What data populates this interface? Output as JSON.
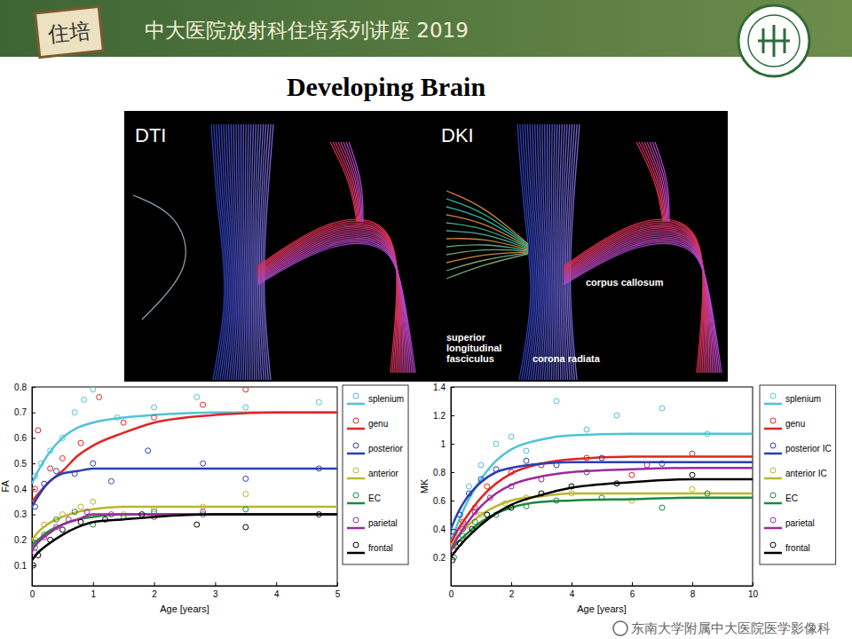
{
  "slide": {
    "header": "中大医院放射科住培系列讲座 2019",
    "badge": "住培",
    "title": "Developing Brain",
    "watermark": "东南大学附属中大医院医学影像科",
    "image": {
      "left_label": "DTI",
      "right_label": "DKI",
      "annotations": [
        "corpus callosum",
        "superior longitudinal fasciculus",
        "corona radiata"
      ]
    }
  },
  "chart_data": [
    {
      "type": "scatter",
      "x_label": "Age [years]",
      "y_label": "FA",
      "xlim": [
        0,
        5
      ],
      "xticks": [
        0,
        1,
        2,
        3,
        4,
        5
      ],
      "ylim": [
        0.02,
        0.8
      ],
      "yticks": [
        0.1,
        0.2,
        0.3,
        0.4,
        0.5,
        0.6,
        0.7,
        0.8
      ],
      "grid": false,
      "legend": "right",
      "series": [
        {
          "name": "splenium",
          "color": "#4ec3d6",
          "marker": "circle",
          "line_style": "solid",
          "x": [
            0.05,
            0.15,
            0.3,
            0.5,
            0.7,
            0.85,
            1.0,
            1.4,
            2.0,
            2.7,
            3.5,
            4.7
          ],
          "values": [
            0.45,
            0.5,
            0.55,
            0.6,
            0.7,
            0.75,
            0.79,
            0.68,
            0.72,
            0.76,
            0.72,
            0.74
          ],
          "fit_x": [
            0,
            0.1,
            0.25,
            0.5,
            0.75,
            1,
            1.5,
            2,
            3,
            4,
            5
          ],
          "fit_values": [
            0.42,
            0.47,
            0.53,
            0.6,
            0.64,
            0.66,
            0.68,
            0.69,
            0.7,
            0.7,
            0.7
          ]
        },
        {
          "name": "genu",
          "color": "#e02424",
          "marker": "circle",
          "line_style": "solid",
          "x": [
            0.05,
            0.1,
            0.3,
            0.5,
            0.8,
            1.1,
            1.5,
            2.0,
            2.8,
            3.5
          ],
          "values": [
            0.4,
            0.63,
            0.48,
            0.52,
            0.58,
            0.76,
            0.66,
            0.68,
            0.73,
            0.79
          ],
          "fit_x": [
            0,
            0.1,
            0.25,
            0.5,
            0.75,
            1,
            1.5,
            2,
            3,
            4,
            5
          ],
          "fit_values": [
            0.35,
            0.38,
            0.42,
            0.47,
            0.53,
            0.57,
            0.62,
            0.66,
            0.69,
            0.7,
            0.7
          ]
        },
        {
          "name": "posterior",
          "color": "#2b3fb2",
          "marker": "circle",
          "line_style": "solid",
          "x": [
            0.05,
            0.2,
            0.4,
            0.7,
            1.0,
            1.3,
            1.9,
            2.8,
            3.5,
            4.7
          ],
          "values": [
            0.33,
            0.42,
            0.47,
            0.46,
            0.5,
            0.43,
            0.55,
            0.5,
            0.44,
            0.48
          ],
          "fit_x": [
            0,
            0.1,
            0.25,
            0.5,
            0.75,
            1,
            1.5,
            2,
            3,
            4,
            5
          ],
          "fit_values": [
            0.33,
            0.37,
            0.42,
            0.46,
            0.47,
            0.48,
            0.48,
            0.48,
            0.48,
            0.48,
            0.48
          ]
        },
        {
          "name": "anterior",
          "color": "#b9b72e",
          "marker": "circle",
          "line_style": "solid",
          "x": [
            0.05,
            0.2,
            0.5,
            0.8,
            1.0,
            1.5,
            2.0,
            2.8,
            3.5
          ],
          "values": [
            0.2,
            0.26,
            0.3,
            0.33,
            0.35,
            0.3,
            0.32,
            0.33,
            0.38
          ],
          "fit_x": [
            0,
            0.1,
            0.25,
            0.5,
            0.75,
            1,
            1.5,
            2,
            3,
            4,
            5
          ],
          "fit_values": [
            0.2,
            0.23,
            0.26,
            0.29,
            0.31,
            0.32,
            0.33,
            0.33,
            0.33,
            0.33,
            0.33
          ]
        },
        {
          "name": "EC",
          "color": "#1b8a3c",
          "marker": "circle",
          "line_style": "solid",
          "x": [
            0.05,
            0.2,
            0.4,
            0.7,
            1.0,
            1.5,
            2.0,
            2.8,
            3.5
          ],
          "values": [
            0.17,
            0.22,
            0.28,
            0.31,
            0.26,
            0.29,
            0.31,
            0.3,
            0.32
          ],
          "fit_x": [
            0,
            0.1,
            0.25,
            0.5,
            0.75,
            1,
            1.5,
            2,
            3,
            4,
            5
          ],
          "fit_values": [
            0.18,
            0.2,
            0.23,
            0.26,
            0.28,
            0.29,
            0.3,
            0.3,
            0.3,
            0.3,
            0.3
          ]
        },
        {
          "name": "parietal",
          "color": "#9b2c9b",
          "marker": "circle",
          "line_style": "solid",
          "x": [
            0.05,
            0.2,
            0.4,
            0.6,
            0.9,
            1.3,
            2.0,
            2.8
          ],
          "values": [
            0.15,
            0.21,
            0.25,
            0.28,
            0.31,
            0.3,
            0.29,
            0.31
          ],
          "fit_x": [
            0,
            0.1,
            0.25,
            0.5,
            0.75,
            1,
            1.5,
            2,
            3,
            4,
            5
          ],
          "fit_values": [
            0.16,
            0.19,
            0.22,
            0.26,
            0.28,
            0.3,
            0.3,
            0.3,
            0.3,
            0.3,
            0.3
          ]
        },
        {
          "name": "frontal",
          "color": "#000000",
          "marker": "circle",
          "line_style": "solid",
          "x": [
            0.02,
            0.1,
            0.3,
            0.5,
            0.8,
            1.2,
            1.8,
            2.7,
            3.5,
            4.7
          ],
          "values": [
            0.1,
            0.14,
            0.2,
            0.24,
            0.27,
            0.28,
            0.3,
            0.26,
            0.25,
            0.3
          ],
          "fit_x": [
            0,
            0.1,
            0.25,
            0.5,
            0.75,
            1,
            1.5,
            2,
            3,
            4,
            5
          ],
          "fit_values": [
            0.12,
            0.15,
            0.18,
            0.22,
            0.25,
            0.27,
            0.28,
            0.29,
            0.3,
            0.3,
            0.3
          ]
        }
      ]
    },
    {
      "type": "scatter",
      "x_label": "Age [years]",
      "y_label": "MK",
      "xlim": [
        0,
        10
      ],
      "xticks": [
        0,
        2,
        4,
        6,
        8,
        10
      ],
      "ylim": [
        0,
        1.4
      ],
      "yticks": [
        0.2,
        0.4,
        0.6,
        0.8,
        1,
        1.2,
        1.4
      ],
      "grid": false,
      "legend": "right",
      "series": [
        {
          "name": "splenium",
          "color": "#4ec3d6",
          "marker": "circle",
          "line_style": "solid",
          "x": [
            0.1,
            0.3,
            0.6,
            1.0,
            1.5,
            2.0,
            2.5,
            3.5,
            4.5,
            5.5,
            7.0,
            8.5
          ],
          "values": [
            0.35,
            0.5,
            0.7,
            0.85,
            1.0,
            1.05,
            0.95,
            1.3,
            1.1,
            1.2,
            1.25,
            1.07
          ],
          "fit_x": [
            0,
            0.25,
            0.5,
            1,
            1.5,
            2,
            3,
            4,
            6,
            8,
            10
          ],
          "fit_values": [
            0.3,
            0.45,
            0.57,
            0.75,
            0.88,
            0.96,
            1.03,
            1.06,
            1.07,
            1.07,
            1.07
          ]
        },
        {
          "name": "genu",
          "color": "#e02424",
          "marker": "circle",
          "line_style": "solid",
          "x": [
            0.1,
            0.4,
            0.8,
            1.2,
            2.0,
            3.0,
            4.5,
            6.0,
            8.0
          ],
          "values": [
            0.3,
            0.45,
            0.55,
            0.7,
            0.8,
            0.85,
            0.9,
            0.78,
            0.93
          ],
          "fit_x": [
            0,
            0.25,
            0.5,
            1,
            1.5,
            2,
            3,
            4,
            6,
            8,
            10
          ],
          "fit_values": [
            0.3,
            0.4,
            0.48,
            0.62,
            0.72,
            0.79,
            0.86,
            0.89,
            0.91,
            0.91,
            0.91
          ]
        },
        {
          "name": "posterior IC",
          "color": "#2b3fb2",
          "marker": "circle",
          "line_style": "solid",
          "x": [
            0.1,
            0.3,
            0.6,
            1.0,
            1.5,
            2.5,
            3.5,
            5.0,
            7.0
          ],
          "values": [
            0.38,
            0.5,
            0.65,
            0.75,
            0.82,
            0.88,
            0.85,
            0.9,
            0.86
          ],
          "fit_x": [
            0,
            0.25,
            0.5,
            1,
            1.5,
            2,
            3,
            4,
            6,
            8,
            10
          ],
          "fit_values": [
            0.4,
            0.52,
            0.61,
            0.73,
            0.8,
            0.83,
            0.86,
            0.87,
            0.87,
            0.87,
            0.87
          ]
        },
        {
          "name": "anterior IC",
          "color": "#b9b72e",
          "marker": "circle",
          "line_style": "solid",
          "x": [
            0.1,
            0.5,
            1.0,
            1.8,
            2.5,
            4.0,
            6.0,
            8.0
          ],
          "values": [
            0.28,
            0.42,
            0.5,
            0.58,
            0.62,
            0.65,
            0.6,
            0.68
          ],
          "fit_x": [
            0,
            0.25,
            0.5,
            1,
            1.5,
            2,
            3,
            4,
            6,
            8,
            10
          ],
          "fit_values": [
            0.28,
            0.35,
            0.41,
            0.5,
            0.56,
            0.6,
            0.63,
            0.65,
            0.65,
            0.65,
            0.65
          ]
        },
        {
          "name": "EC",
          "color": "#1b8a3c",
          "marker": "circle",
          "line_style": "solid",
          "x": [
            0.1,
            0.4,
            0.8,
            1.5,
            2.5,
            3.5,
            5.0,
            7.0,
            8.5
          ],
          "values": [
            0.2,
            0.35,
            0.45,
            0.5,
            0.56,
            0.6,
            0.62,
            0.55,
            0.65
          ],
          "fit_x": [
            0,
            0.25,
            0.5,
            1,
            1.5,
            2,
            3,
            4,
            6,
            8,
            10
          ],
          "fit_values": [
            0.25,
            0.31,
            0.36,
            0.45,
            0.51,
            0.55,
            0.59,
            0.6,
            0.61,
            0.62,
            0.62
          ]
        },
        {
          "name": "parietal",
          "color": "#9b2c9b",
          "marker": "circle",
          "line_style": "solid",
          "x": [
            0.1,
            0.4,
            0.8,
            1.3,
            2.0,
            3.0,
            4.5,
            6.5
          ],
          "values": [
            0.25,
            0.4,
            0.52,
            0.62,
            0.7,
            0.75,
            0.8,
            0.85
          ],
          "fit_x": [
            0,
            0.25,
            0.5,
            1,
            1.5,
            2,
            3,
            4,
            6,
            8,
            10
          ],
          "fit_values": [
            0.25,
            0.35,
            0.43,
            0.56,
            0.65,
            0.71,
            0.77,
            0.8,
            0.82,
            0.83,
            0.83
          ]
        },
        {
          "name": "frontal",
          "color": "#000000",
          "marker": "circle",
          "line_style": "solid",
          "x": [
            0.05,
            0.3,
            0.7,
            1.2,
            2.0,
            3.0,
            4.0,
            5.5,
            8.0
          ],
          "values": [
            0.18,
            0.3,
            0.4,
            0.5,
            0.55,
            0.65,
            0.7,
            0.72,
            0.78
          ],
          "fit_x": [
            0,
            0.25,
            0.5,
            1,
            1.5,
            2,
            3,
            4,
            6,
            8,
            10
          ],
          "fit_values": [
            0.2,
            0.27,
            0.33,
            0.43,
            0.51,
            0.57,
            0.64,
            0.69,
            0.73,
            0.75,
            0.75
          ]
        }
      ]
    }
  ]
}
